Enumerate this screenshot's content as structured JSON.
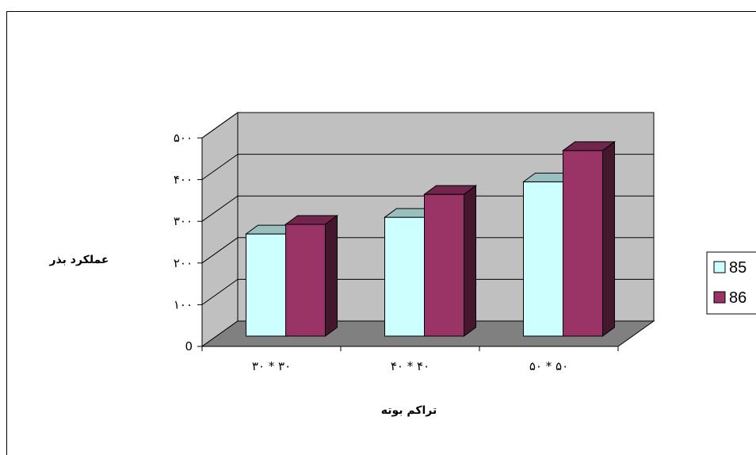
{
  "chart_data": {
    "type": "bar",
    "title": "",
    "xlabel": "تراکم بوته",
    "ylabel": "عملکرد بذر",
    "categories": [
      "۳۰ * ۳۰",
      "۴۰ * ۴۰",
      "۵۰ * ۵۰"
    ],
    "series": [
      {
        "name": "85",
        "values": [
          245,
          285,
          370
        ],
        "color": "#CCFFFF"
      },
      {
        "name": "86",
        "values": [
          268,
          340,
          445
        ],
        "color": "#993366"
      }
    ],
    "ylim": [
      0,
      500
    ],
    "yticks": [
      {
        "value": 0,
        "label": "0"
      },
      {
        "value": 100,
        "label": "۱۰۰"
      },
      {
        "value": 200,
        "label": "۲۰۰"
      },
      {
        "value": 300,
        "label": "۳۰۰"
      },
      {
        "value": 400,
        "label": "۴۰۰"
      },
      {
        "value": 500,
        "label": "۵۰۰"
      }
    ],
    "grid": true,
    "legend": "right",
    "wall_color": "#C0C0C0",
    "floor_color": "#808080"
  }
}
